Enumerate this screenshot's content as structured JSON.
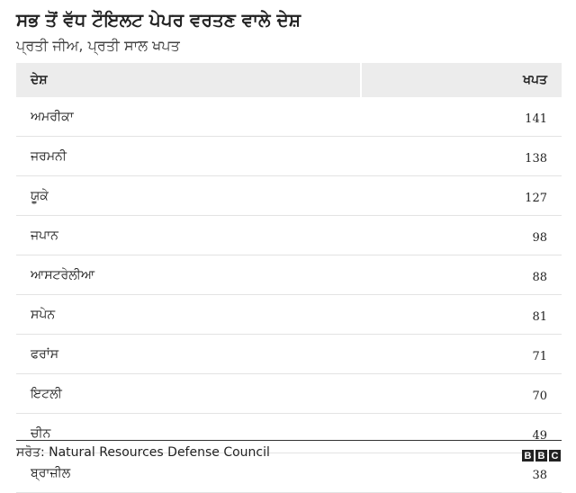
{
  "header": {
    "title": "ਸਭ ਤੋਂ ਵੱਧ ਟੌਇਲਟ ਪੇਪਰ ਵਰਤਣ ਵਾਲੇ ਦੇਸ਼",
    "subtitle": "ਪ੍ਰਤੀ ਜੀਅ, ਪ੍ਰਤੀ ਸਾਲ ਖਪਤ"
  },
  "table": {
    "columns": [
      "ਦੇਸ਼",
      "ਖਪਤ"
    ],
    "rows": [
      [
        "ਅਮਰੀਕਾ",
        141
      ],
      [
        "ਜਰਮਨੀ",
        138
      ],
      [
        "ਯੂਕੇ",
        127
      ],
      [
        "ਜਪਾਨ",
        98
      ],
      [
        "ਆਸਟਰੇਲੀਆ",
        88
      ],
      [
        "ਸਪੇਨ",
        81
      ],
      [
        "ਫਰਾਂਸ",
        71
      ],
      [
        "ਇਟਲੀ",
        70
      ],
      [
        "ਚੀਨ",
        49
      ],
      [
        "ਬ੍ਰਾਜ਼ੀਲ",
        38
      ]
    ]
  },
  "footer": {
    "source": "ਸਰੋਤ: Natural Resources Defense Council",
    "logo": [
      "B",
      "B",
      "C"
    ]
  }
}
